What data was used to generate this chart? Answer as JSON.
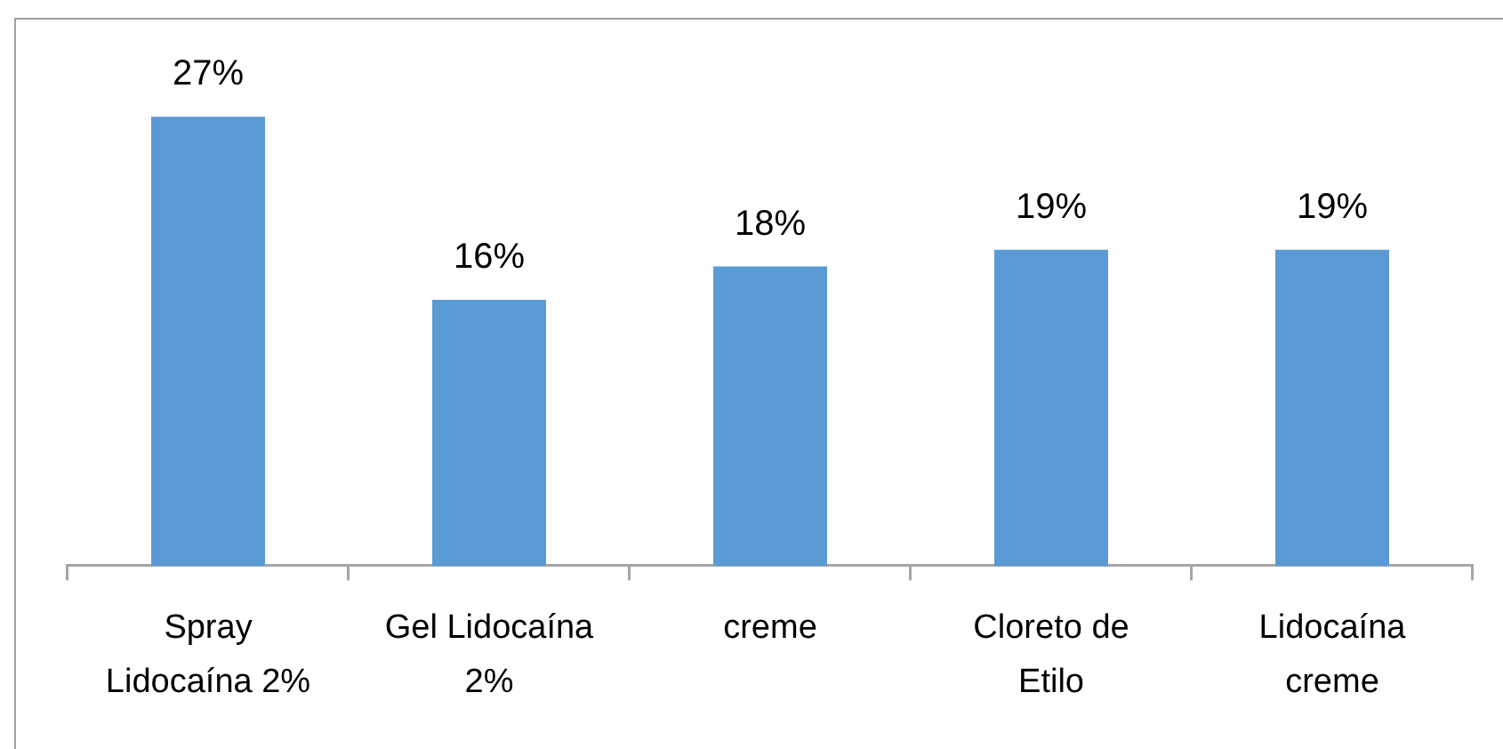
{
  "chart_data": {
    "type": "bar",
    "categories": [
      "Spray Lidocaína 2%",
      "Gel Lidocaína 2%",
      "creme",
      "Cloreto de Etilo",
      "Lidocaína creme"
    ],
    "values": [
      27,
      16,
      18,
      19,
      19
    ],
    "color": "#5b9bd5",
    "value_labels": [
      "27%",
      "16%",
      "18%",
      "19%",
      "19%"
    ]
  }
}
